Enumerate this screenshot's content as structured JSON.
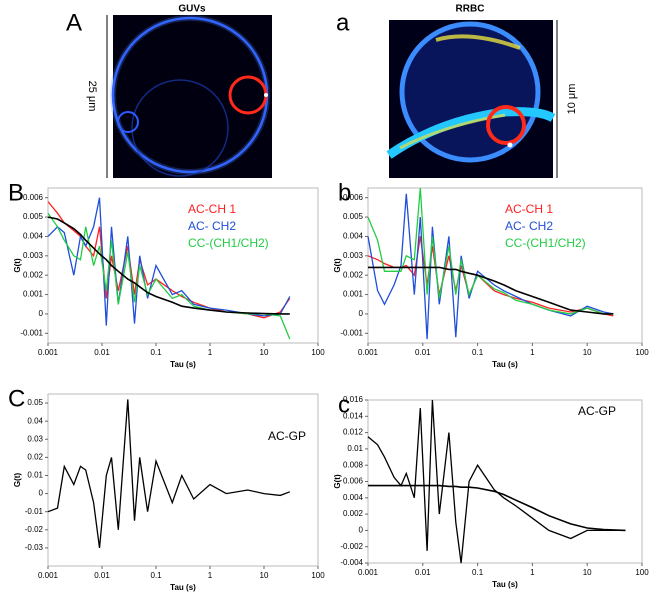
{
  "images": [
    {
      "label": "A",
      "title": "GUVs",
      "scale": "25 μm"
    },
    {
      "label": "a",
      "title": "RRBC",
      "scale": "10 μm"
    }
  ],
  "chart_data": [
    {
      "type": "line",
      "label": "B",
      "xlabel": "Tau (s)",
      "ylabel": "G(t)",
      "xscale": "log",
      "xlim": [
        0.001,
        100
      ],
      "xticks": [
        0.001,
        0.01,
        0.1,
        1,
        10,
        100
      ],
      "ylim": [
        -0.0015,
        0.0065
      ],
      "yticks": [
        -0.001,
        0,
        0.001,
        0.002,
        0.003,
        0.004,
        0.005,
        0.006
      ],
      "x": [
        0.001,
        0.0015,
        0.002,
        0.003,
        0.004,
        0.005,
        0.007,
        0.009,
        0.012,
        0.015,
        0.02,
        0.03,
        0.04,
        0.05,
        0.07,
        0.1,
        0.2,
        0.3,
        0.5,
        1,
        2,
        5,
        10,
        20,
        30
      ],
      "series": [
        {
          "name": "AC-CH 1",
          "color": "#ff2020",
          "values": [
            0.0058,
            0.0052,
            0.0047,
            0.0043,
            0.004,
            0.0035,
            0.003,
            0.0045,
            0.0008,
            0.003,
            0.0012,
            0.0035,
            0.001,
            0.0028,
            0.0015,
            0.0018,
            0.0012,
            0.0009,
            0.0006,
            0.0003,
            0.0001,
            0,
            -0.0002,
            0.0001,
            0.0008
          ]
        },
        {
          "name": "AC- CH2",
          "color": "#1f4fd8",
          "values": [
            0.004,
            0.0045,
            0.0042,
            0.002,
            0.004,
            0.0035,
            0.0045,
            0.006,
            -0.0006,
            0.0045,
            0.0005,
            0.004,
            -0.0005,
            0.003,
            0.0008,
            0.0025,
            0.001,
            0.0012,
            0.0005,
            0.0003,
            0.0002,
            0,
            -0.0001,
            0,
            0.0009
          ]
        },
        {
          "name": "CC-(CH1/CH2)",
          "color": "#22cc44",
          "values": [
            0.0052,
            0.0045,
            0.0038,
            0.003,
            0.0028,
            0.0045,
            0.0025,
            0.0035,
            0.0012,
            0.0038,
            0.0005,
            0.0032,
            0.0006,
            0.0025,
            0.001,
            0.0018,
            0.0008,
            0.001,
            0.0004,
            0.0002,
            0.0001,
            0,
            0,
            -0.0001,
            -0.0013
          ]
        },
        {
          "color": "#000000",
          "values": [
            0.005,
            0.0049,
            0.0047,
            0.0044,
            0.0041,
            0.0038,
            0.0034,
            0.0031,
            0.0028,
            0.0025,
            0.0022,
            0.0018,
            0.0016,
            0.0014,
            0.0011,
            0.0009,
            0.0006,
            0.0004,
            0.0003,
            0.0002,
            0.0001,
            5e-05,
            2e-05,
            0,
            0
          ]
        }
      ]
    },
    {
      "type": "line",
      "label": "b",
      "xlabel": "Tau (s)",
      "ylabel": "G(t)",
      "xscale": "log",
      "xlim": [
        0.001,
        100
      ],
      "xticks": [
        0.001,
        0.01,
        0.1,
        1,
        10,
        100
      ],
      "ylim": [
        -0.0015,
        0.0065
      ],
      "yticks": [
        -0.001,
        0,
        0.001,
        0.002,
        0.003,
        0.004,
        0.005,
        0.006
      ],
      "x": [
        0.001,
        0.0015,
        0.002,
        0.003,
        0.004,
        0.005,
        0.007,
        0.009,
        0.012,
        0.015,
        0.02,
        0.03,
        0.04,
        0.05,
        0.07,
        0.1,
        0.2,
        0.3,
        0.5,
        1,
        2,
        5,
        10,
        20,
        30
      ],
      "series": [
        {
          "name": "AC-CH 1",
          "color": "#ff2020",
          "values": [
            0.003,
            0.0028,
            0.0026,
            0.0024,
            0.0024,
            0.0025,
            0.002,
            0.004,
            0.0015,
            0.0035,
            0.001,
            0.003,
            0.0012,
            0.0025,
            0.001,
            0.002,
            0.0012,
            0.001,
            0.0008,
            0.0006,
            0.0003,
            0.0001,
            0.0003,
            0,
            -0.0001
          ]
        },
        {
          "name": "AC- CH2",
          "color": "#1f4fd8",
          "values": [
            0.004,
            0.0012,
            0.0005,
            0.0015,
            0.0025,
            0.0062,
            0.001,
            0.005,
            -0.0013,
            0.0045,
            0.0005,
            0.004,
            -0.0012,
            0.003,
            0.0008,
            0.0022,
            0.0015,
            0.0012,
            0.0009,
            0.0005,
            0.0002,
            -0.0001,
            0.0004,
            0.0001,
            0
          ]
        },
        {
          "name": "CC-(CH1/CH2)",
          "color": "#22cc44",
          "values": [
            0.005,
            0.0038,
            0.0022,
            0.0022,
            0.0022,
            0.003,
            0.0028,
            0.0065,
            0.001,
            0.004,
            0.0008,
            0.0035,
            0.001,
            0.0028,
            0.001,
            0.002,
            0.0013,
            0.0011,
            0.0007,
            0.0005,
            0.0002,
            0,
            0.0003,
            0,
            0
          ]
        },
        {
          "color": "#000000",
          "values": [
            0.0024,
            0.0024,
            0.0024,
            0.0024,
            0.0024,
            0.0024,
            0.0024,
            0.0024,
            0.0024,
            0.0024,
            0.0024,
            0.0023,
            0.0023,
            0.0022,
            0.0021,
            0.002,
            0.0017,
            0.0015,
            0.0012,
            0.0009,
            0.0006,
            0.0002,
            0.0001,
            0,
            0
          ]
        }
      ]
    },
    {
      "type": "line",
      "label": "C",
      "xlabel": "Tau (s)",
      "ylabel": "G(t)",
      "xscale": "log",
      "xlim": [
        0.001,
        100
      ],
      "xticks": [
        0.001,
        0.01,
        0.1,
        1,
        10,
        100
      ],
      "ylim": [
        -0.04,
        0.055
      ],
      "yticks": [
        -0.03,
        -0.02,
        -0.01,
        0,
        0.01,
        0.02,
        0.03,
        0.04,
        0.05
      ],
      "x": [
        0.001,
        0.0015,
        0.002,
        0.003,
        0.004,
        0.005,
        0.007,
        0.009,
        0.012,
        0.015,
        0.02,
        0.03,
        0.04,
        0.05,
        0.07,
        0.1,
        0.2,
        0.3,
        0.5,
        1,
        2,
        5,
        10,
        20,
        30
      ],
      "series": [
        {
          "name": "AC-GP",
          "color": "#000000",
          "values": [
            -0.01,
            -0.008,
            0.015,
            0.005,
            0.015,
            0.013,
            -0.005,
            -0.03,
            0.01,
            0.02,
            -0.02,
            0.052,
            -0.015,
            0.02,
            -0.01,
            0.018,
            -0.005,
            0.01,
            -0.003,
            0.005,
            0,
            0.002,
            0,
            -0.001,
            0.001
          ]
        }
      ]
    },
    {
      "type": "line",
      "label": "c",
      "xlabel": "Tau (s)",
      "ylabel": "G(t)",
      "xscale": "log",
      "xlim": [
        0.001,
        100
      ],
      "xticks": [
        0.001,
        0.01,
        0.1,
        1,
        10,
        100
      ],
      "ylim": [
        -0.004,
        0.016
      ],
      "yticks": [
        -0.004,
        -0.002,
        0,
        0.002,
        0.004,
        0.006,
        0.008,
        0.01,
        0.012,
        0.014,
        0.016
      ],
      "x": [
        0.001,
        0.0015,
        0.002,
        0.003,
        0.004,
        0.005,
        0.007,
        0.009,
        0.012,
        0.015,
        0.02,
        0.03,
        0.04,
        0.05,
        0.07,
        0.1,
        0.2,
        0.3,
        0.5,
        1,
        2,
        5,
        10,
        20,
        50
      ],
      "series": [
        {
          "name": "AC-GP",
          "color": "#000000",
          "values": [
            0.0115,
            0.0105,
            0.009,
            0.0065,
            0.0055,
            0.007,
            0.004,
            0.015,
            -0.0025,
            0.016,
            0.002,
            0.012,
            0.001,
            -0.004,
            0.006,
            0.008,
            0.005,
            0.004,
            0.003,
            0.0015,
            0,
            -0.001,
            0,
            0,
            0
          ]
        },
        {
          "color": "#000000",
          "values": [
            0.0055,
            0.0055,
            0.0055,
            0.0055,
            0.0055,
            0.0055,
            0.0055,
            0.0055,
            0.0055,
            0.0055,
            0.0055,
            0.0054,
            0.0054,
            0.0053,
            0.0053,
            0.0052,
            0.0048,
            0.0044,
            0.0037,
            0.0028,
            0.0018,
            0.0008,
            0.0003,
            0.0001,
            0
          ]
        }
      ]
    }
  ]
}
